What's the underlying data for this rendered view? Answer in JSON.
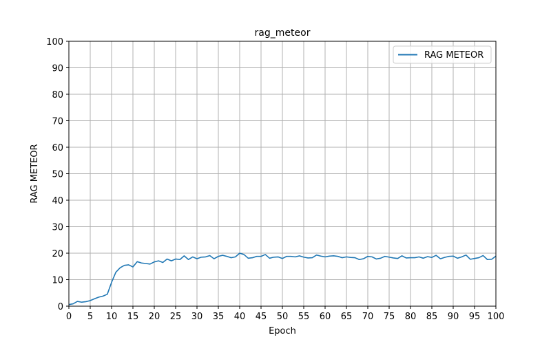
{
  "chart_data": {
    "type": "line",
    "title": "rag_meteor",
    "xlabel": "Epoch",
    "ylabel": "RAG METEOR",
    "xlim": [
      0,
      100
    ],
    "ylim": [
      0,
      100
    ],
    "xticks": [
      0,
      5,
      10,
      15,
      20,
      25,
      30,
      35,
      40,
      45,
      50,
      55,
      60,
      65,
      70,
      75,
      80,
      85,
      90,
      95,
      100
    ],
    "yticks": [
      0,
      10,
      20,
      30,
      40,
      50,
      60,
      70,
      80,
      90,
      100
    ],
    "grid": true,
    "legend_position": "upper right",
    "series": [
      {
        "name": "RAG METEOR",
        "color": "#1f77b4",
        "x": [
          0,
          1,
          2,
          3,
          4,
          5,
          6,
          7,
          8,
          9,
          10,
          11,
          12,
          13,
          14,
          15,
          16,
          17,
          18,
          19,
          20,
          21,
          22,
          23,
          24,
          25,
          26,
          27,
          28,
          29,
          30,
          31,
          32,
          33,
          34,
          35,
          36,
          37,
          38,
          39,
          40,
          41,
          42,
          43,
          44,
          45,
          46,
          47,
          48,
          49,
          50,
          51,
          52,
          53,
          54,
          55,
          56,
          57,
          58,
          59,
          60,
          61,
          62,
          63,
          64,
          65,
          66,
          67,
          68,
          69,
          70,
          71,
          72,
          73,
          74,
          75,
          76,
          77,
          78,
          79,
          80,
          81,
          82,
          83,
          84,
          85,
          86,
          87,
          88,
          89,
          90,
          91,
          92,
          93,
          94,
          95,
          96,
          97,
          98,
          99,
          100
        ],
        "values": [
          0.6,
          0.9,
          1.8,
          1.5,
          1.7,
          2.1,
          2.8,
          3.4,
          3.8,
          4.5,
          9.0,
          12.8,
          14.5,
          15.4,
          15.6,
          14.8,
          16.8,
          16.3,
          16.1,
          15.9,
          16.7,
          17.1,
          16.5,
          17.8,
          17.1,
          17.8,
          17.6,
          19.0,
          17.6,
          18.6,
          17.9,
          18.5,
          18.6,
          19.1,
          17.9,
          18.8,
          19.2,
          18.8,
          18.3,
          18.6,
          20.0,
          19.5,
          18.1,
          18.3,
          18.8,
          18.8,
          19.5,
          18.1,
          18.5,
          18.6,
          18.0,
          18.8,
          18.8,
          18.6,
          19.0,
          18.5,
          18.2,
          18.3,
          19.3,
          18.9,
          18.6,
          18.9,
          19.0,
          18.8,
          18.3,
          18.6,
          18.4,
          18.3,
          17.6,
          17.9,
          18.8,
          18.6,
          17.8,
          18.1,
          18.8,
          18.5,
          18.2,
          18.0,
          19.0,
          18.2,
          18.3,
          18.3,
          18.6,
          18.1,
          18.7,
          18.4,
          19.2,
          17.9,
          18.4,
          18.8,
          18.9,
          18.1,
          18.6,
          19.3,
          17.7,
          18.0,
          18.3,
          19.1,
          17.6,
          17.7,
          18.9
        ]
      }
    ]
  }
}
